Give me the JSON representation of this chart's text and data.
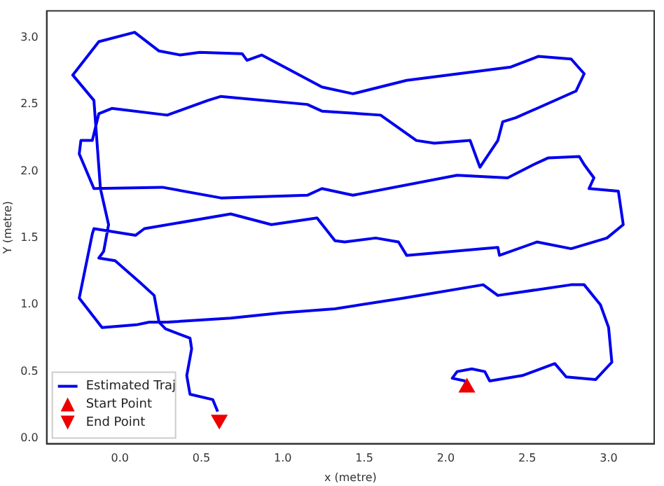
{
  "chart_data": {
    "type": "line",
    "xlabel": "x (metre)",
    "ylabel": "Y (metre)",
    "xlim": [
      -0.45,
      3.28
    ],
    "ylim": [
      -0.04,
      3.2
    ],
    "xticks": [
      {
        "value": 0,
        "label": "0.0"
      },
      {
        "value": 0.5,
        "label": "0.5"
      },
      {
        "value": 1,
        "label": "1.0"
      },
      {
        "value": 1.5,
        "label": "1.5"
      },
      {
        "value": 2,
        "label": "2.0"
      },
      {
        "value": 2.5,
        "label": "2.5"
      },
      {
        "value": 3,
        "label": "3.0"
      }
    ],
    "yticks": [
      {
        "value": 0,
        "label": "0.0"
      },
      {
        "value": 0.5,
        "label": "0.5"
      },
      {
        "value": 1,
        "label": "1.0"
      },
      {
        "value": 1.5,
        "label": "1.5"
      },
      {
        "value": 2,
        "label": "2.0"
      },
      {
        "value": 2.5,
        "label": "2.5"
      },
      {
        "value": 3,
        "label": "3.0"
      }
    ],
    "grid": false,
    "legend": "bottom left",
    "series": [
      {
        "name": "Estimated Traj",
        "type": "line",
        "color": "#0000ee",
        "marker": "none",
        "x": [
          2.12,
          2.04,
          2.07,
          2.16,
          2.24,
          2.27,
          2.47,
          2.67,
          2.74,
          2.92,
          3.02,
          3.0,
          2.95,
          2.85,
          2.77,
          2.32,
          2.23,
          1.74,
          1.32,
          0.99,
          0.68,
          0.29,
          0.18,
          0.1,
          -0.11,
          -0.25,
          -0.17,
          -0.16,
          0.095,
          0.15,
          0.68,
          0.93,
          1.21,
          1.32,
          1.38,
          1.57,
          1.71,
          1.76,
          2.32,
          2.33,
          2.56,
          2.77,
          2.99,
          3.09,
          3.06,
          2.88,
          2.91,
          2.85,
          2.82,
          2.63,
          2.54,
          2.38,
          2.07,
          1.43,
          1.24,
          1.15,
          0.62,
          0.26,
          -0.16,
          -0.25,
          -0.24,
          -0.17,
          -0.13,
          -0.05,
          0.29,
          0.54,
          0.62,
          1.15,
          1.24,
          1.6,
          1.82,
          1.93,
          2.15,
          2.21,
          2.32,
          2.35,
          2.43,
          2.8,
          2.85,
          2.77,
          2.57,
          2.4,
          1.76,
          1.43,
          1.24,
          1.01,
          0.87,
          0.78,
          0.75,
          0.49,
          0.37,
          0.24,
          0.09,
          -0.13,
          -0.29,
          -0.16,
          -0.12,
          -0.07,
          -0.1,
          -0.13,
          -0.03,
          0.12,
          0.21,
          0.24,
          0.28,
          0.43,
          0.44,
          0.41,
          0.43,
          0.57,
          0.6
        ],
        "values": [
          0.43,
          0.45,
          0.5,
          0.52,
          0.5,
          0.43,
          0.47,
          0.56,
          0.46,
          0.44,
          0.57,
          0.83,
          1.0,
          1.15,
          1.15,
          1.07,
          1.15,
          1.05,
          0.97,
          0.94,
          0.9,
          0.87,
          0.87,
          0.85,
          0.83,
          1.05,
          1.53,
          1.57,
          1.52,
          1.57,
          1.68,
          1.6,
          1.65,
          1.48,
          1.47,
          1.5,
          1.47,
          1.37,
          1.43,
          1.37,
          1.47,
          1.42,
          1.5,
          1.6,
          1.85,
          1.87,
          1.95,
          2.05,
          2.11,
          2.1,
          2.05,
          1.95,
          1.97,
          1.82,
          1.87,
          1.82,
          1.8,
          1.88,
          1.87,
          2.13,
          2.23,
          2.23,
          2.43,
          2.47,
          2.42,
          2.53,
          2.56,
          2.5,
          2.45,
          2.42,
          2.23,
          2.21,
          2.23,
          2.03,
          2.23,
          2.37,
          2.4,
          2.6,
          2.73,
          2.84,
          2.86,
          2.78,
          2.68,
          2.58,
          2.63,
          2.78,
          2.87,
          2.83,
          2.88,
          2.89,
          2.87,
          2.9,
          3.04,
          2.97,
          2.72,
          2.53,
          1.87,
          1.6,
          1.4,
          1.35,
          1.33,
          1.17,
          1.07,
          0.87,
          0.82,
          0.75,
          0.67,
          0.47,
          0.33,
          0.29,
          0.2
        ]
      },
      {
        "name": "Start Point",
        "type": "scatter",
        "color": "#ee0000",
        "marker": "triangle",
        "x": [
          2.13
        ],
        "values": [
          0.38
        ]
      },
      {
        "name": "End Point",
        "type": "scatter",
        "color": "#ee0000",
        "marker": "triangle-down",
        "x": [
          0.61
        ],
        "values": [
          0.14
        ]
      }
    ]
  }
}
